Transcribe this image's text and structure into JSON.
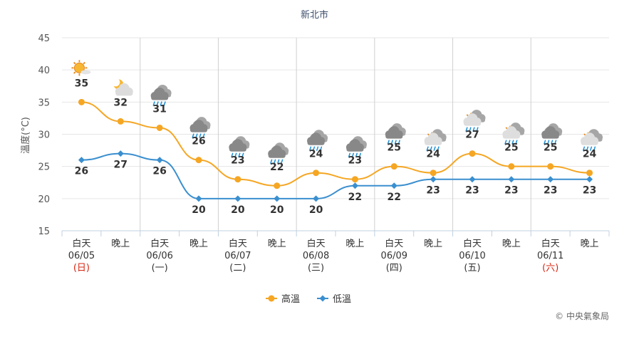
{
  "chart_data": {
    "type": "line",
    "title": "新北市",
    "ylabel": "溫度(°C)",
    "ylim": [
      15,
      45
    ],
    "yticks": [
      15,
      20,
      25,
      30,
      35,
      40,
      45
    ],
    "grid": true,
    "legend_position": "bottom",
    "x": [
      {
        "line1": "白天",
        "line2": "06/05",
        "line3": "(日)",
        "line3_red": true
      },
      {
        "line1": "晚上",
        "line2": "",
        "line3": "",
        "line3_red": false
      },
      {
        "line1": "白天",
        "line2": "06/06",
        "line3": "(一)",
        "line3_red": false
      },
      {
        "line1": "晚上",
        "line2": "",
        "line3": "",
        "line3_red": false
      },
      {
        "line1": "白天",
        "line2": "06/07",
        "line3": "(二)",
        "line3_red": false
      },
      {
        "line1": "晚上",
        "line2": "",
        "line3": "",
        "line3_red": false
      },
      {
        "line1": "白天",
        "line2": "06/08",
        "line3": "(三)",
        "line3_red": false
      },
      {
        "line1": "晚上",
        "line2": "",
        "line3": "",
        "line3_red": false
      },
      {
        "line1": "白天",
        "line2": "06/09",
        "line3": "(四)",
        "line3_red": false
      },
      {
        "line1": "晚上",
        "line2": "",
        "line3": "",
        "line3_red": false
      },
      {
        "line1": "白天",
        "line2": "06/10",
        "line3": "(五)",
        "line3_red": false
      },
      {
        "line1": "晚上",
        "line2": "",
        "line3": "",
        "line3_red": false
      },
      {
        "line1": "白天",
        "line2": "06/11",
        "line3": "(六)",
        "line3_red": true
      },
      {
        "line1": "晚上",
        "line2": "",
        "line3": "",
        "line3_red": false
      }
    ],
    "series": [
      {
        "name": "高溫",
        "color": "#f5a623",
        "marker": "circle",
        "values": [
          35,
          32,
          31,
          26,
          23,
          22,
          24,
          23,
          25,
          24,
          27,
          25,
          25,
          24
        ]
      },
      {
        "name": "低溫",
        "color": "#3a8fcf",
        "marker": "diamond",
        "values": [
          26,
          27,
          26,
          20,
          20,
          20,
          20,
          22,
          22,
          23,
          23,
          23,
          23,
          23
        ]
      }
    ],
    "weather_icons": [
      "sunny-icon",
      "moon-cloudy-icon",
      "cloud-rain-icon",
      "cloud-rain-icon",
      "cloud-rain-icon",
      "cloud-rain-icon",
      "cloud-rain-icon",
      "cloud-rain-icon",
      "cloud-rain-icon",
      "cloud-sun-rain-icon",
      "cloud-sun-rain-icon",
      "cloud-sun-rain-icon",
      "cloud-rain-icon",
      "cloud-sun-rain-icon"
    ],
    "credit": "© 中央氣象局"
  }
}
